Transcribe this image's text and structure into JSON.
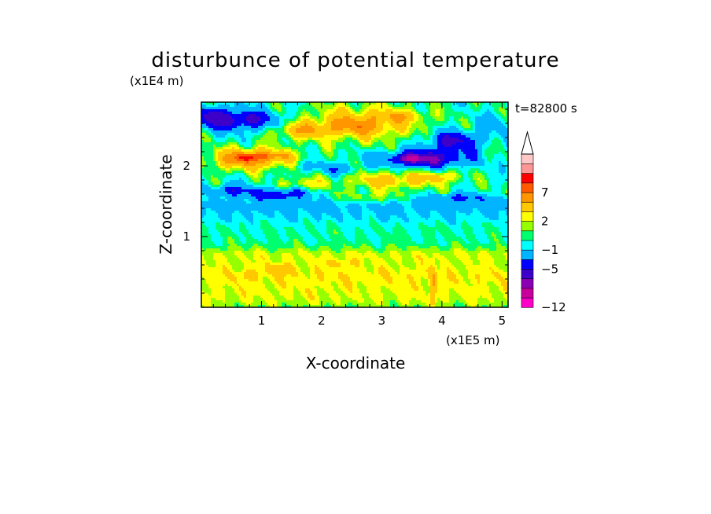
{
  "chart_data": {
    "type": "heatmap",
    "title": "disturbunce of potential temperature",
    "time_label": "t=82800 s",
    "xlabel": "X-coordinate",
    "ylabel": "Z-coordinate",
    "x_unit": "(x1E5 m)",
    "y_unit": "(x1E4 m)",
    "xlim": [
      0.0,
      5.1
    ],
    "ylim": [
      0.0,
      2.9
    ],
    "x_ticks": [
      {
        "value": 1,
        "label": "1"
      },
      {
        "value": 2,
        "label": "2"
      },
      {
        "value": 3,
        "label": "3"
      },
      {
        "value": 4,
        "label": "4"
      },
      {
        "value": 5,
        "label": "5"
      }
    ],
    "y_ticks": [
      {
        "value": 1,
        "label": "1"
      },
      {
        "value": 2,
        "label": "2"
      }
    ],
    "colorbar": {
      "levels": [
        -12,
        -9,
        -7,
        -5,
        -3,
        -1,
        0,
        1,
        2,
        3,
        5,
        7,
        9,
        12
      ],
      "colors": [
        "#ff00c8",
        "#c8009b",
        "#8c00b4",
        "#3c00c8",
        "#0000ff",
        "#00b4ff",
        "#00ffff",
        "#00ff6e",
        "#96ff00",
        "#ffff00",
        "#ffc800",
        "#ff9600",
        "#ff5a00",
        "#ff0000",
        "#ff9696",
        "#ffc8c8"
      ],
      "labels": [
        {
          "value": -12,
          "label": "−12"
        },
        {
          "value": -5,
          "label": "−5"
        },
        {
          "value": -1,
          "label": "−1"
        },
        {
          "value": 2,
          "label": "2"
        },
        {
          "value": 7,
          "label": "7"
        }
      ],
      "extend": "max"
    },
    "features": [
      {
        "type": "band",
        "z": 0.12,
        "width": 0.18,
        "amp": 1.6
      },
      {
        "type": "band",
        "z": 0.45,
        "width": 0.25,
        "amp": 2.6
      },
      {
        "type": "band",
        "z": 0.75,
        "width": 0.12,
        "amp": 1.4
      },
      {
        "type": "band",
        "z": 1.05,
        "width": 0.12,
        "amp": 0.1
      },
      {
        "type": "band",
        "z": 1.3,
        "width": 0.12,
        "amp": -0.9
      },
      {
        "type": "band",
        "z": 1.45,
        "width": 0.1,
        "amp": -1.6
      },
      {
        "type": "blob",
        "x": 0.8,
        "z": 2.1,
        "sx": 0.65,
        "sz": 0.15,
        "amp": 6.5
      },
      {
        "type": "blob",
        "x": 0.75,
        "z": 2.12,
        "sx": 0.18,
        "sz": 0.05,
        "amp": 4.5
      },
      {
        "type": "blob",
        "x": 1.2,
        "z": 2.15,
        "sx": 0.3,
        "sz": 0.06,
        "amp": 2.5
      },
      {
        "type": "blob",
        "x": 2.6,
        "z": 2.6,
        "sx": 1.0,
        "sz": 0.25,
        "amp": 4.5
      },
      {
        "type": "blob",
        "x": 2.5,
        "z": 2.55,
        "sx": 0.5,
        "sz": 0.1,
        "amp": 2.0
      },
      {
        "type": "blob",
        "x": 3.3,
        "z": 2.7,
        "sx": 0.4,
        "sz": 0.08,
        "amp": 2.5
      },
      {
        "type": "blob",
        "x": 1.6,
        "z": 2.5,
        "sx": 0.4,
        "sz": 0.12,
        "amp": 3.5
      },
      {
        "type": "blob",
        "x": 0.55,
        "z": 2.65,
        "sx": 0.8,
        "sz": 0.15,
        "amp": -6.0
      },
      {
        "type": "blob",
        "x": 0.2,
        "z": 2.75,
        "sx": 0.15,
        "sz": 0.1,
        "amp": -3.0
      },
      {
        "type": "blob",
        "x": 3.7,
        "z": 2.1,
        "sx": 0.7,
        "sz": 0.12,
        "amp": -7.0
      },
      {
        "type": "blob",
        "x": 3.5,
        "z": 2.1,
        "sx": 0.2,
        "sz": 0.05,
        "amp": -4.0
      },
      {
        "type": "blob",
        "x": 4.2,
        "z": 2.35,
        "sx": 0.45,
        "sz": 0.15,
        "amp": -5.5
      },
      {
        "type": "blob",
        "x": 4.9,
        "z": 2.6,
        "sx": 0.25,
        "sz": 0.15,
        "amp": -2.0
      },
      {
        "type": "blob",
        "x": 3.2,
        "z": 1.8,
        "sx": 0.8,
        "sz": 0.12,
        "amp": 4.0
      },
      {
        "type": "blob",
        "x": 4.0,
        "z": 1.85,
        "sx": 0.3,
        "sz": 0.08,
        "amp": 2.5
      },
      {
        "type": "blob",
        "x": 1.7,
        "z": 1.75,
        "sx": 0.4,
        "sz": 0.08,
        "amp": 2.5
      },
      {
        "type": "blob",
        "x": 0.5,
        "z": 1.65,
        "sx": 0.35,
        "sz": 0.08,
        "amp": -4.0
      },
      {
        "type": "blob",
        "x": 1.3,
        "z": 1.6,
        "sx": 0.5,
        "sz": 0.08,
        "amp": -4.5
      },
      {
        "type": "blob",
        "x": 4.3,
        "z": 1.55,
        "sx": 0.5,
        "sz": 0.06,
        "amp": -3.0
      },
      {
        "type": "blob",
        "x": 2.3,
        "z": 1.95,
        "sx": 0.3,
        "sz": 0.08,
        "amp": -2.5
      },
      {
        "type": "blob",
        "x": 1.8,
        "z": 2.0,
        "sx": 0.25,
        "sz": 0.07,
        "amp": -2.0
      },
      {
        "type": "blob",
        "x": 2.8,
        "z": 1.55,
        "sx": 0.6,
        "sz": 0.1,
        "amp": 2.0
      },
      {
        "type": "blob",
        "x": 1.3,
        "z": 0.55,
        "sx": 0.25,
        "sz": 0.08,
        "amp": 1.8
      },
      {
        "type": "blob",
        "x": 0.8,
        "z": 0.45,
        "sx": 0.15,
        "sz": 0.06,
        "amp": 1.5
      },
      {
        "type": "blob",
        "x": 2.3,
        "z": 0.62,
        "sx": 0.3,
        "sz": 0.06,
        "amp": 1.5
      },
      {
        "type": "blob",
        "x": 3.85,
        "z": 0.3,
        "sx": 0.05,
        "sz": 0.3,
        "amp": 3.0
      }
    ]
  }
}
